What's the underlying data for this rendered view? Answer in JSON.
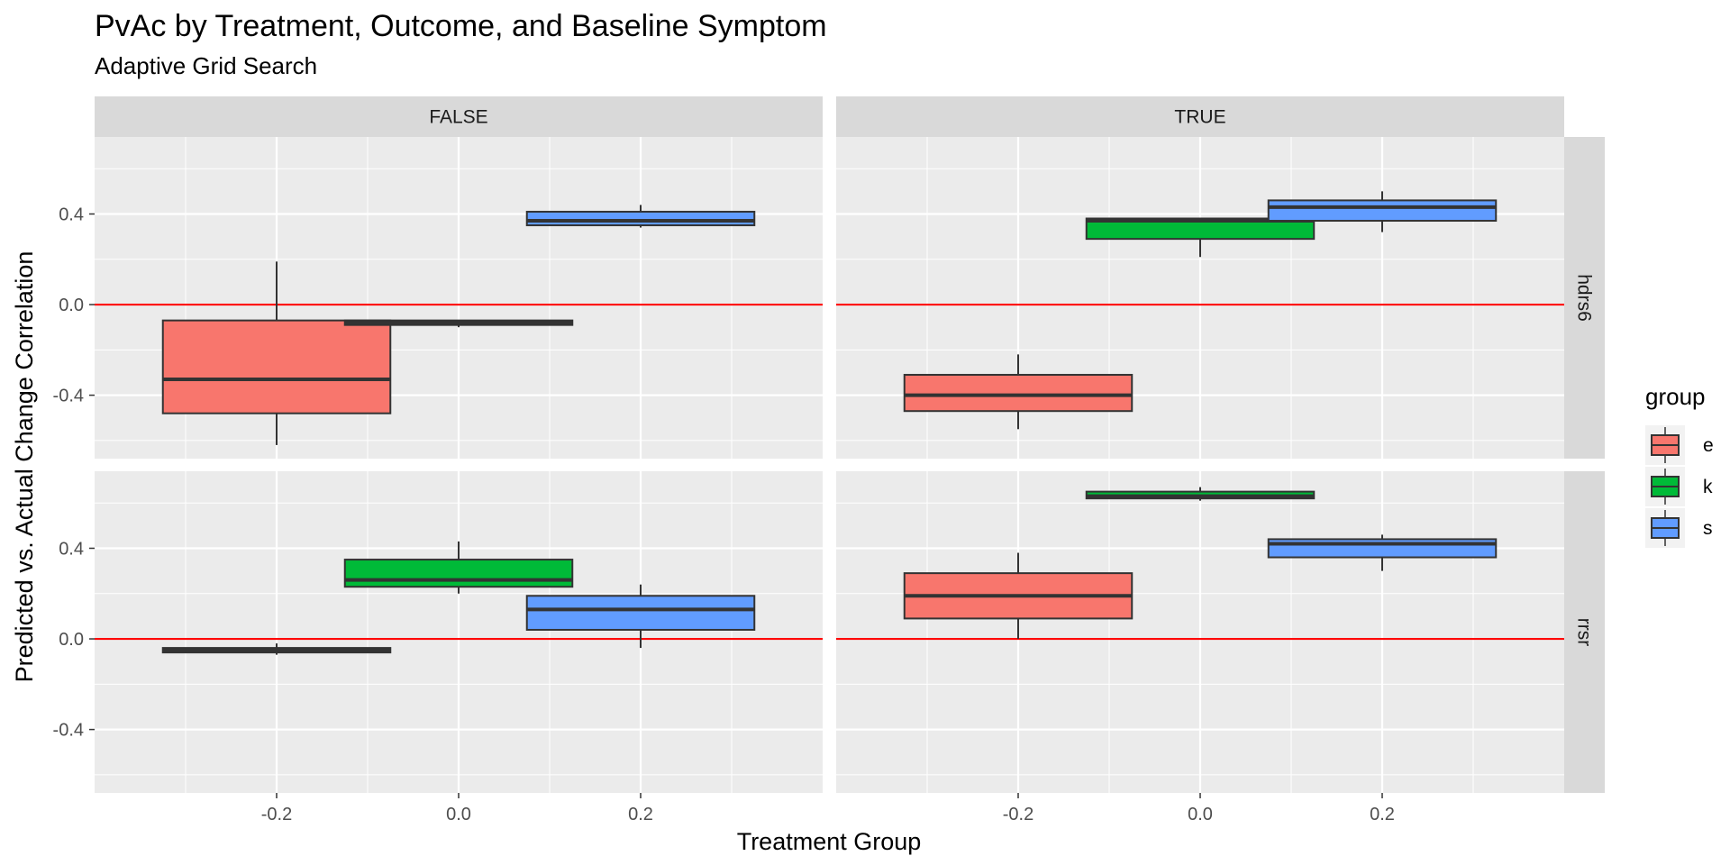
{
  "chart_data": {
    "type": "boxplot",
    "title": "PvAc by Treatment, Outcome, and Baseline Symptom",
    "subtitle": "Adaptive Grid Search",
    "xlabel": "Treatment Group",
    "ylabel": "Predicted vs. Actual Change Correlation",
    "column_facets": [
      "FALSE",
      "TRUE"
    ],
    "row_facets": [
      "hdrs6",
      "rrsr"
    ],
    "x_ticks": [
      "-0.2",
      "0.0",
      "0.2"
    ],
    "x_tick_values": [
      -0.2,
      0.0,
      0.2
    ],
    "y_ticks": [
      "-0.4",
      "0.0",
      "0.4"
    ],
    "y_tick_values": [
      -0.4,
      0.0,
      0.4
    ],
    "xlim": [
      -0.4,
      0.4
    ],
    "ylim": [
      -0.68,
      0.74
    ],
    "reference_line": {
      "y": 0.0,
      "color": "#FF0000"
    },
    "legend": {
      "title": "group",
      "position": "right",
      "items": [
        {
          "label": "e",
          "color": "#F8766D"
        },
        {
          "label": "k",
          "color": "#00BA38"
        },
        {
          "label": "s",
          "color": "#619CFF"
        }
      ]
    },
    "panels": [
      {
        "col": "FALSE",
        "row": "hdrs6",
        "boxes": [
          {
            "group": "e",
            "x": -0.2,
            "min": -0.62,
            "q1": -0.48,
            "median": -0.33,
            "q3": -0.07,
            "max": 0.19
          },
          {
            "group": "k",
            "x": 0.0,
            "min": -0.1,
            "q1": -0.09,
            "median": -0.08,
            "q3": -0.07,
            "max": -0.07
          },
          {
            "group": "s",
            "x": 0.2,
            "min": 0.34,
            "q1": 0.35,
            "median": 0.37,
            "q3": 0.41,
            "max": 0.44
          }
        ]
      },
      {
        "col": "TRUE",
        "row": "hdrs6",
        "boxes": [
          {
            "group": "e",
            "x": -0.2,
            "min": -0.55,
            "q1": -0.47,
            "median": -0.4,
            "q3": -0.31,
            "max": -0.22
          },
          {
            "group": "k",
            "x": 0.0,
            "min": 0.21,
            "q1": 0.29,
            "median": 0.37,
            "q3": 0.38,
            "max": 0.38
          },
          {
            "group": "s",
            "x": 0.2,
            "min": 0.32,
            "q1": 0.37,
            "median": 0.43,
            "q3": 0.46,
            "max": 0.5
          }
        ]
      },
      {
        "col": "FALSE",
        "row": "rrsr",
        "boxes": [
          {
            "group": "e",
            "x": -0.2,
            "min": -0.07,
            "q1": -0.06,
            "median": -0.05,
            "q3": -0.04,
            "max": -0.02
          },
          {
            "group": "k",
            "x": 0.0,
            "min": 0.2,
            "q1": 0.23,
            "median": 0.26,
            "q3": 0.35,
            "max": 0.43
          },
          {
            "group": "s",
            "x": 0.2,
            "min": -0.04,
            "q1": 0.04,
            "median": 0.13,
            "q3": 0.19,
            "max": 0.24
          }
        ]
      },
      {
        "col": "TRUE",
        "row": "rrsr",
        "boxes": [
          {
            "group": "e",
            "x": -0.2,
            "min": 0.0,
            "q1": 0.09,
            "median": 0.19,
            "q3": 0.29,
            "max": 0.38
          },
          {
            "group": "k",
            "x": 0.0,
            "min": 0.61,
            "q1": 0.62,
            "median": 0.63,
            "q3": 0.65,
            "max": 0.67
          },
          {
            "group": "s",
            "x": 0.2,
            "min": 0.3,
            "q1": 0.36,
            "median": 0.42,
            "q3": 0.44,
            "max": 0.46
          }
        ]
      }
    ]
  }
}
